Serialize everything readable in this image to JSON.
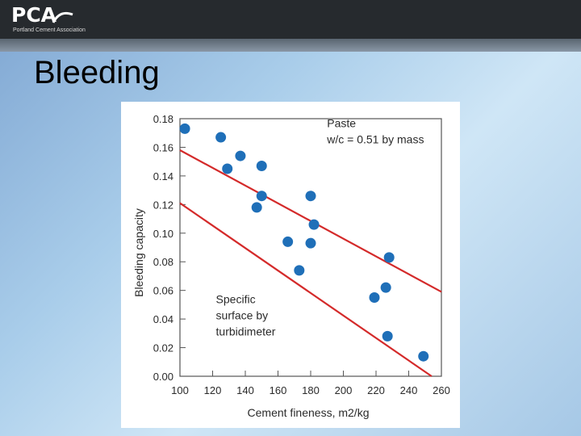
{
  "header": {
    "logo_text": "PCA",
    "logo_subtitle": "Portland Cement Association"
  },
  "slide": {
    "title": "Bleeding"
  },
  "colors": {
    "header_bg": "#262a2e",
    "point": "#1f6fb8",
    "band_line": "#d42a2a"
  },
  "chart_data": {
    "type": "scatter",
    "xlabel": "Cement fineness, m2/kg",
    "ylabel": "Bleeding capacity",
    "xlim": [
      100,
      260
    ],
    "ylim": [
      0.0,
      0.18
    ],
    "x_ticks": [
      100,
      120,
      140,
      160,
      180,
      200,
      220,
      240,
      260
    ],
    "x_tick_labels": [
      "100",
      "120",
      "140",
      "160",
      "180",
      "200",
      "220",
      "240",
      "260"
    ],
    "y_ticks": [
      0.0,
      0.02,
      0.04,
      0.06,
      0.08,
      0.1,
      0.12,
      0.14,
      0.16,
      0.18
    ],
    "y_tick_labels": [
      "0.00",
      "0.02",
      "0.04",
      "0.06",
      "0.08",
      "0.10",
      "0.12",
      "0.14",
      "0.16",
      "0.18"
    ],
    "grid": false,
    "annotations": [
      {
        "lines": [
          "Paste",
          "w/c = 0.51 by mass"
        ],
        "x": 190,
        "y": 0.174
      },
      {
        "lines": [
          "Specific",
          "surface by",
          "turbidimeter"
        ],
        "x": 122,
        "y": 0.051
      }
    ],
    "series": [
      {
        "points": [
          [
            103,
            0.173
          ],
          [
            125,
            0.167
          ],
          [
            129,
            0.145
          ],
          [
            137,
            0.154
          ],
          [
            150,
            0.147
          ],
          [
            147,
            0.118
          ],
          [
            150,
            0.126
          ],
          [
            166,
            0.094
          ],
          [
            173,
            0.074
          ],
          [
            180,
            0.126
          ],
          [
            180,
            0.093
          ],
          [
            182,
            0.106
          ],
          [
            219,
            0.055
          ],
          [
            226,
            0.062
          ],
          [
            228,
            0.083
          ],
          [
            227,
            0.028
          ],
          [
            249,
            0.014
          ]
        ]
      }
    ],
    "envelope_lines": [
      {
        "x": [
          100,
          260
        ],
        "y": [
          0.158,
          0.059
        ]
      },
      {
        "x": [
          100,
          254
        ],
        "y": [
          0.121,
          0.0
        ]
      }
    ]
  }
}
